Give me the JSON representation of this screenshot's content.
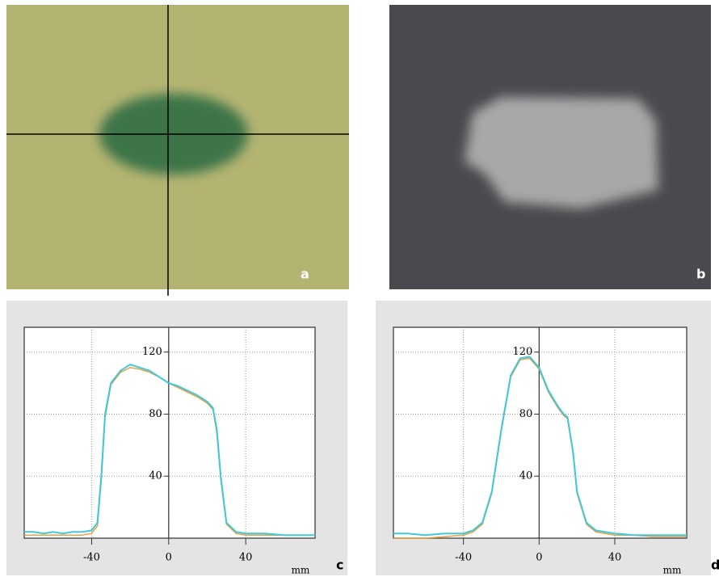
{
  "figure": {
    "labels": [
      "a",
      "b",
      "c",
      "d"
    ]
  },
  "chart_data": [
    {
      "type": "line",
      "xlabel": "mm",
      "x": [
        -75,
        -70,
        -65,
        -60,
        -55,
        -50,
        -45,
        -40,
        -37,
        -35,
        -33,
        -30,
        -25,
        -20,
        -15,
        -10,
        -5,
        0,
        5,
        10,
        15,
        20,
        23,
        25,
        27,
        30,
        35,
        40,
        50,
        60,
        70,
        76
      ],
      "series": [
        {
          "color": "#e8a040",
          "values": [
            2,
            2,
            2,
            2,
            2,
            2,
            2,
            3,
            8,
            38,
            78,
            99,
            107,
            110,
            109,
            107,
            104,
            100,
            97,
            94,
            91,
            87,
            83,
            68,
            38,
            9,
            3,
            2,
            2,
            2,
            2,
            2
          ]
        },
        {
          "color": "#40c8d8",
          "values": [
            4,
            4,
            3,
            4,
            3,
            4,
            4,
            5,
            10,
            40,
            80,
            100,
            108,
            112,
            110,
            108,
            104,
            100,
            98,
            95,
            92,
            88,
            84,
            70,
            40,
            10,
            4,
            3,
            3,
            2,
            2,
            2
          ]
        }
      ],
      "xlim": [
        -75,
        76
      ],
      "ylim": [
        0,
        136
      ],
      "xticks": [
        -40,
        0,
        40
      ],
      "yticks": [
        40,
        80,
        120
      ],
      "grid": true
    },
    {
      "type": "line",
      "xlabel": "mm",
      "x": [
        -77,
        -70,
        -60,
        -50,
        -40,
        -35,
        -30,
        -25,
        -20,
        -15,
        -10,
        -5,
        0,
        5,
        10,
        13,
        15,
        18,
        20,
        25,
        30,
        40,
        50,
        60,
        70,
        78
      ],
      "series": [
        {
          "color": "#e8a040",
          "values": [
            0,
            0,
            0,
            1,
            2,
            4,
            9,
            29,
            69,
            104,
            115,
            116,
            109,
            94,
            84,
            79,
            77,
            54,
            29,
            9,
            4,
            2,
            2,
            1,
            1,
            1
          ]
        },
        {
          "color": "#40c8d8",
          "values": [
            3,
            3,
            2,
            3,
            3,
            5,
            10,
            30,
            70,
            105,
            116,
            117,
            110,
            95,
            85,
            80,
            78,
            55,
            30,
            10,
            5,
            3,
            2,
            2,
            2,
            2
          ]
        }
      ],
      "xlim": [
        -77,
        78
      ],
      "ylim": [
        0,
        136
      ],
      "xticks": [
        -40,
        0,
        40
      ],
      "yticks": [
        40,
        80,
        120
      ],
      "grid": true
    }
  ]
}
